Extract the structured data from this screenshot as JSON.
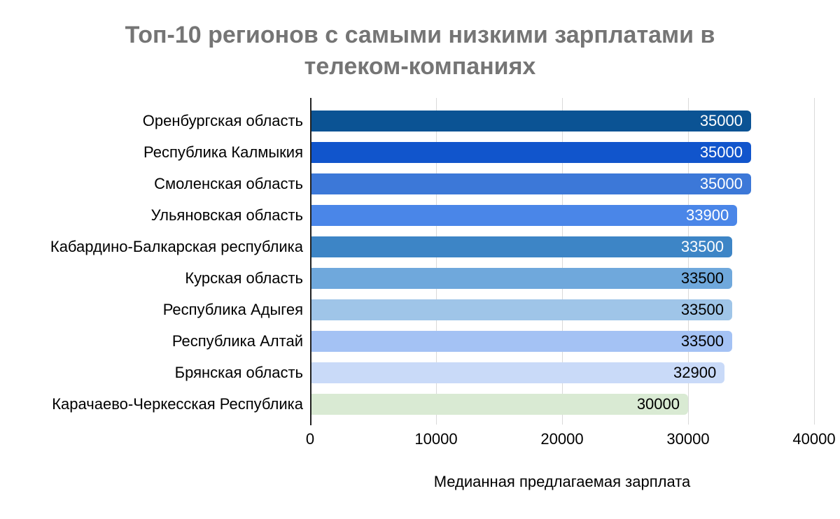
{
  "title": "Топ-10 регионов с самыми низкими зарплатами в телеком-компаниях",
  "chart_data": {
    "type": "bar",
    "orientation": "horizontal",
    "title": "Топ-10 регионов с самыми низкими зарплатами в телеком-компаниях",
    "xlabel": "Медианная предлагаемая зарплата",
    "ylabel": "",
    "categories": [
      "Оренбургская область",
      "Республика Калмыкия",
      "Смоленская область",
      "Ульяновская область",
      "Кабардино-Балкарская республика",
      "Курская область",
      "Республика Адыгея",
      "Республика Алтай",
      "Брянская область",
      "Карачаево-Черкесская Республика"
    ],
    "values": [
      35000,
      35000,
      35000,
      33900,
      33500,
      33500,
      33500,
      33500,
      32900,
      30000
    ],
    "value_labels": [
      "35000",
      "35000",
      "35000",
      "33900",
      "33500",
      "33500",
      "33500",
      "33500",
      "32900",
      "30000"
    ],
    "bar_colors": [
      "#0b5394",
      "#1155cc",
      "#3c78d8",
      "#4a86e8",
      "#3d85c6",
      "#6fa8dc",
      "#9fc5e8",
      "#a4c2f4",
      "#c9daf8",
      "#d9ead3"
    ],
    "value_label_colors": [
      "#ffffff",
      "#ffffff",
      "#ffffff",
      "#ffffff",
      "#ffffff",
      "#000000",
      "#000000",
      "#000000",
      "#000000",
      "#000000"
    ],
    "xlim": [
      0,
      40000
    ],
    "x_ticks": [
      0,
      10000,
      20000,
      30000,
      40000
    ],
    "x_tick_labels": [
      "0",
      "10000",
      "20000",
      "30000",
      "40000"
    ],
    "grid": "vertical",
    "legend": "none",
    "colors": {
      "title_text": "#757575",
      "gridline": "#d9d9d9",
      "axis_line": "#212121",
      "background": "#ffffff"
    }
  }
}
